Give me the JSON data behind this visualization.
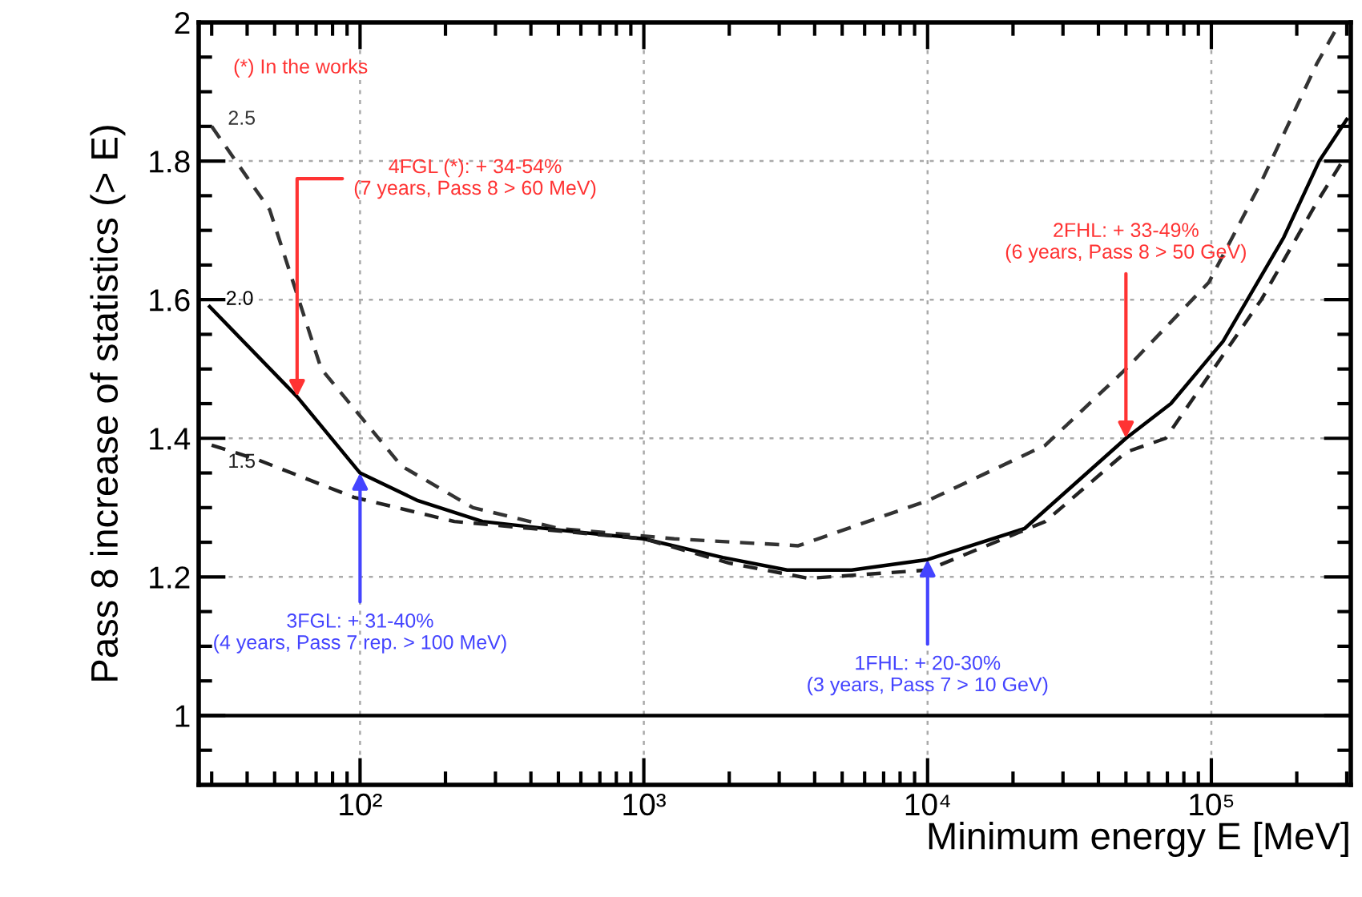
{
  "chart_data": {
    "type": "line",
    "xlabel": "Minimum energy E [MeV]",
    "ylabel": "Pass 8 increase of statistics (> E)",
    "log": "x",
    "xlim": [
      27,
      310000
    ],
    "ylim": [
      0.9,
      2
    ],
    "xticks": [
      {
        "value": 100,
        "label": "10²"
      },
      {
        "value": 1000,
        "label": "10³"
      },
      {
        "value": 10000,
        "label": "10⁴"
      },
      {
        "value": 100000,
        "label": "10⁵"
      }
    ],
    "yticks": [
      1,
      1.2,
      1.4,
      1.6,
      1.8,
      2
    ],
    "grid": true,
    "marker": "none",
    "legend": "left",
    "series": [
      {
        "name": "2.5",
        "color": "#333333",
        "line_style": "dashed",
        "x": [
          30,
          48,
          73,
          140,
          250,
          500,
          1280,
          3500,
          10000,
          26000,
          50000,
          98000,
          150000,
          235000,
          275000
        ],
        "values": [
          1.85,
          1.73,
          1.5,
          1.36,
          1.3,
          1.27,
          1.255,
          1.245,
          1.31,
          1.39,
          1.5,
          1.625,
          1.77,
          1.94,
          1.99
        ]
      },
      {
        "name": "2.0",
        "color": "#000000",
        "line_style": "solid",
        "x": [
          29.5,
          60,
          100,
          160,
          270,
          520,
          1000,
          1900,
          3200,
          5400,
          10000,
          22000,
          50000,
          72000,
          110000,
          180000,
          240000,
          300000
        ],
        "values": [
          1.59,
          1.46,
          1.35,
          1.31,
          1.28,
          1.267,
          1.255,
          1.228,
          1.21,
          1.21,
          1.225,
          1.27,
          1.4,
          1.45,
          1.54,
          1.69,
          1.8,
          1.86
        ]
      },
      {
        "name": "1.5",
        "color": "#222222",
        "line_style": "dashed",
        "x": [
          30,
          43,
          95,
          215,
          400,
          1000,
          2000,
          3800,
          10000,
          26000,
          50000,
          69000,
          150000,
          235000,
          290000
        ],
        "values": [
          1.39,
          1.37,
          1.315,
          1.28,
          1.27,
          1.255,
          1.22,
          1.198,
          1.21,
          1.28,
          1.38,
          1.4,
          1.6,
          1.74,
          1.8
        ]
      }
    ],
    "ref_lines": [
      {
        "axis": "y",
        "value": 1,
        "color": "#000000",
        "line_style": "solid"
      }
    ],
    "annotations": [
      "(*) In the works",
      {
        "text": "4FGL (*): + 34-54%\n(7 years, Pass 8 > 60 MeV)",
        "x": 60,
        "y": 1.46
      },
      {
        "text": "3FGL: + 31-40%\n(4 years, Pass 7 rep. > 100 MeV)",
        "x": 100,
        "y": 1.35
      },
      {
        "text": "1FHL: + 20-30%\n(3 years, Pass 7 > 10 GeV)",
        "x": 10000,
        "y": 1.225
      },
      {
        "text": "2FHL: + 33-49%\n(6 years, Pass 8 > 50 GeV)",
        "x": 50000,
        "y": 1.4
      }
    ]
  }
}
